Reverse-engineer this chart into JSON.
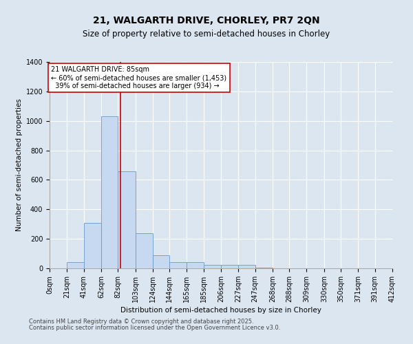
{
  "title1": "21, WALGARTH DRIVE, CHORLEY, PR7 2QN",
  "title2": "Size of property relative to semi-detached houses in Chorley",
  "xlabel": "Distribution of semi-detached houses by size in Chorley",
  "ylabel": "Number of semi-detached properties",
  "bin_labels": [
    "0sqm",
    "21sqm",
    "41sqm",
    "62sqm",
    "82sqm",
    "103sqm",
    "124sqm",
    "144sqm",
    "165sqm",
    "185sqm",
    "206sqm",
    "227sqm",
    "247sqm",
    "268sqm",
    "288sqm",
    "309sqm",
    "330sqm",
    "350sqm",
    "371sqm",
    "391sqm",
    "412sqm"
  ],
  "bin_edges": [
    0,
    21,
    41,
    62,
    82,
    103,
    124,
    144,
    165,
    185,
    206,
    227,
    247,
    268,
    288,
    309,
    330,
    350,
    371,
    391,
    412
  ],
  "bar_heights": [
    0,
    40,
    310,
    1030,
    660,
    240,
    90,
    40,
    40,
    25,
    25,
    25,
    5,
    0,
    0,
    0,
    0,
    0,
    0,
    0
  ],
  "bar_color": "#c6d9f0",
  "bar_edge_color": "#6699cc",
  "property_size": 85,
  "red_line_color": "#cc0000",
  "annotation_line1": "21 WALGARTH DRIVE: 85sqm",
  "annotation_line2": "← 60% of semi-detached houses are smaller (1,453)",
  "annotation_line3": "  39% of semi-detached houses are larger (934) →",
  "annotation_box_color": "#ffffff",
  "annotation_box_edge": "#cc0000",
  "ylim": [
    0,
    1400
  ],
  "yticks": [
    0,
    200,
    400,
    600,
    800,
    1000,
    1200,
    1400
  ],
  "background_color": "#dce6f1",
  "plot_background": "#dce6f1",
  "footer1": "Contains HM Land Registry data © Crown copyright and database right 2025.",
  "footer2": "Contains public sector information licensed under the Open Government Licence v3.0.",
  "title1_fontsize": 10,
  "title2_fontsize": 8.5,
  "axis_label_fontsize": 7.5,
  "tick_fontsize": 7,
  "annotation_fontsize": 7,
  "footer_fontsize": 6
}
